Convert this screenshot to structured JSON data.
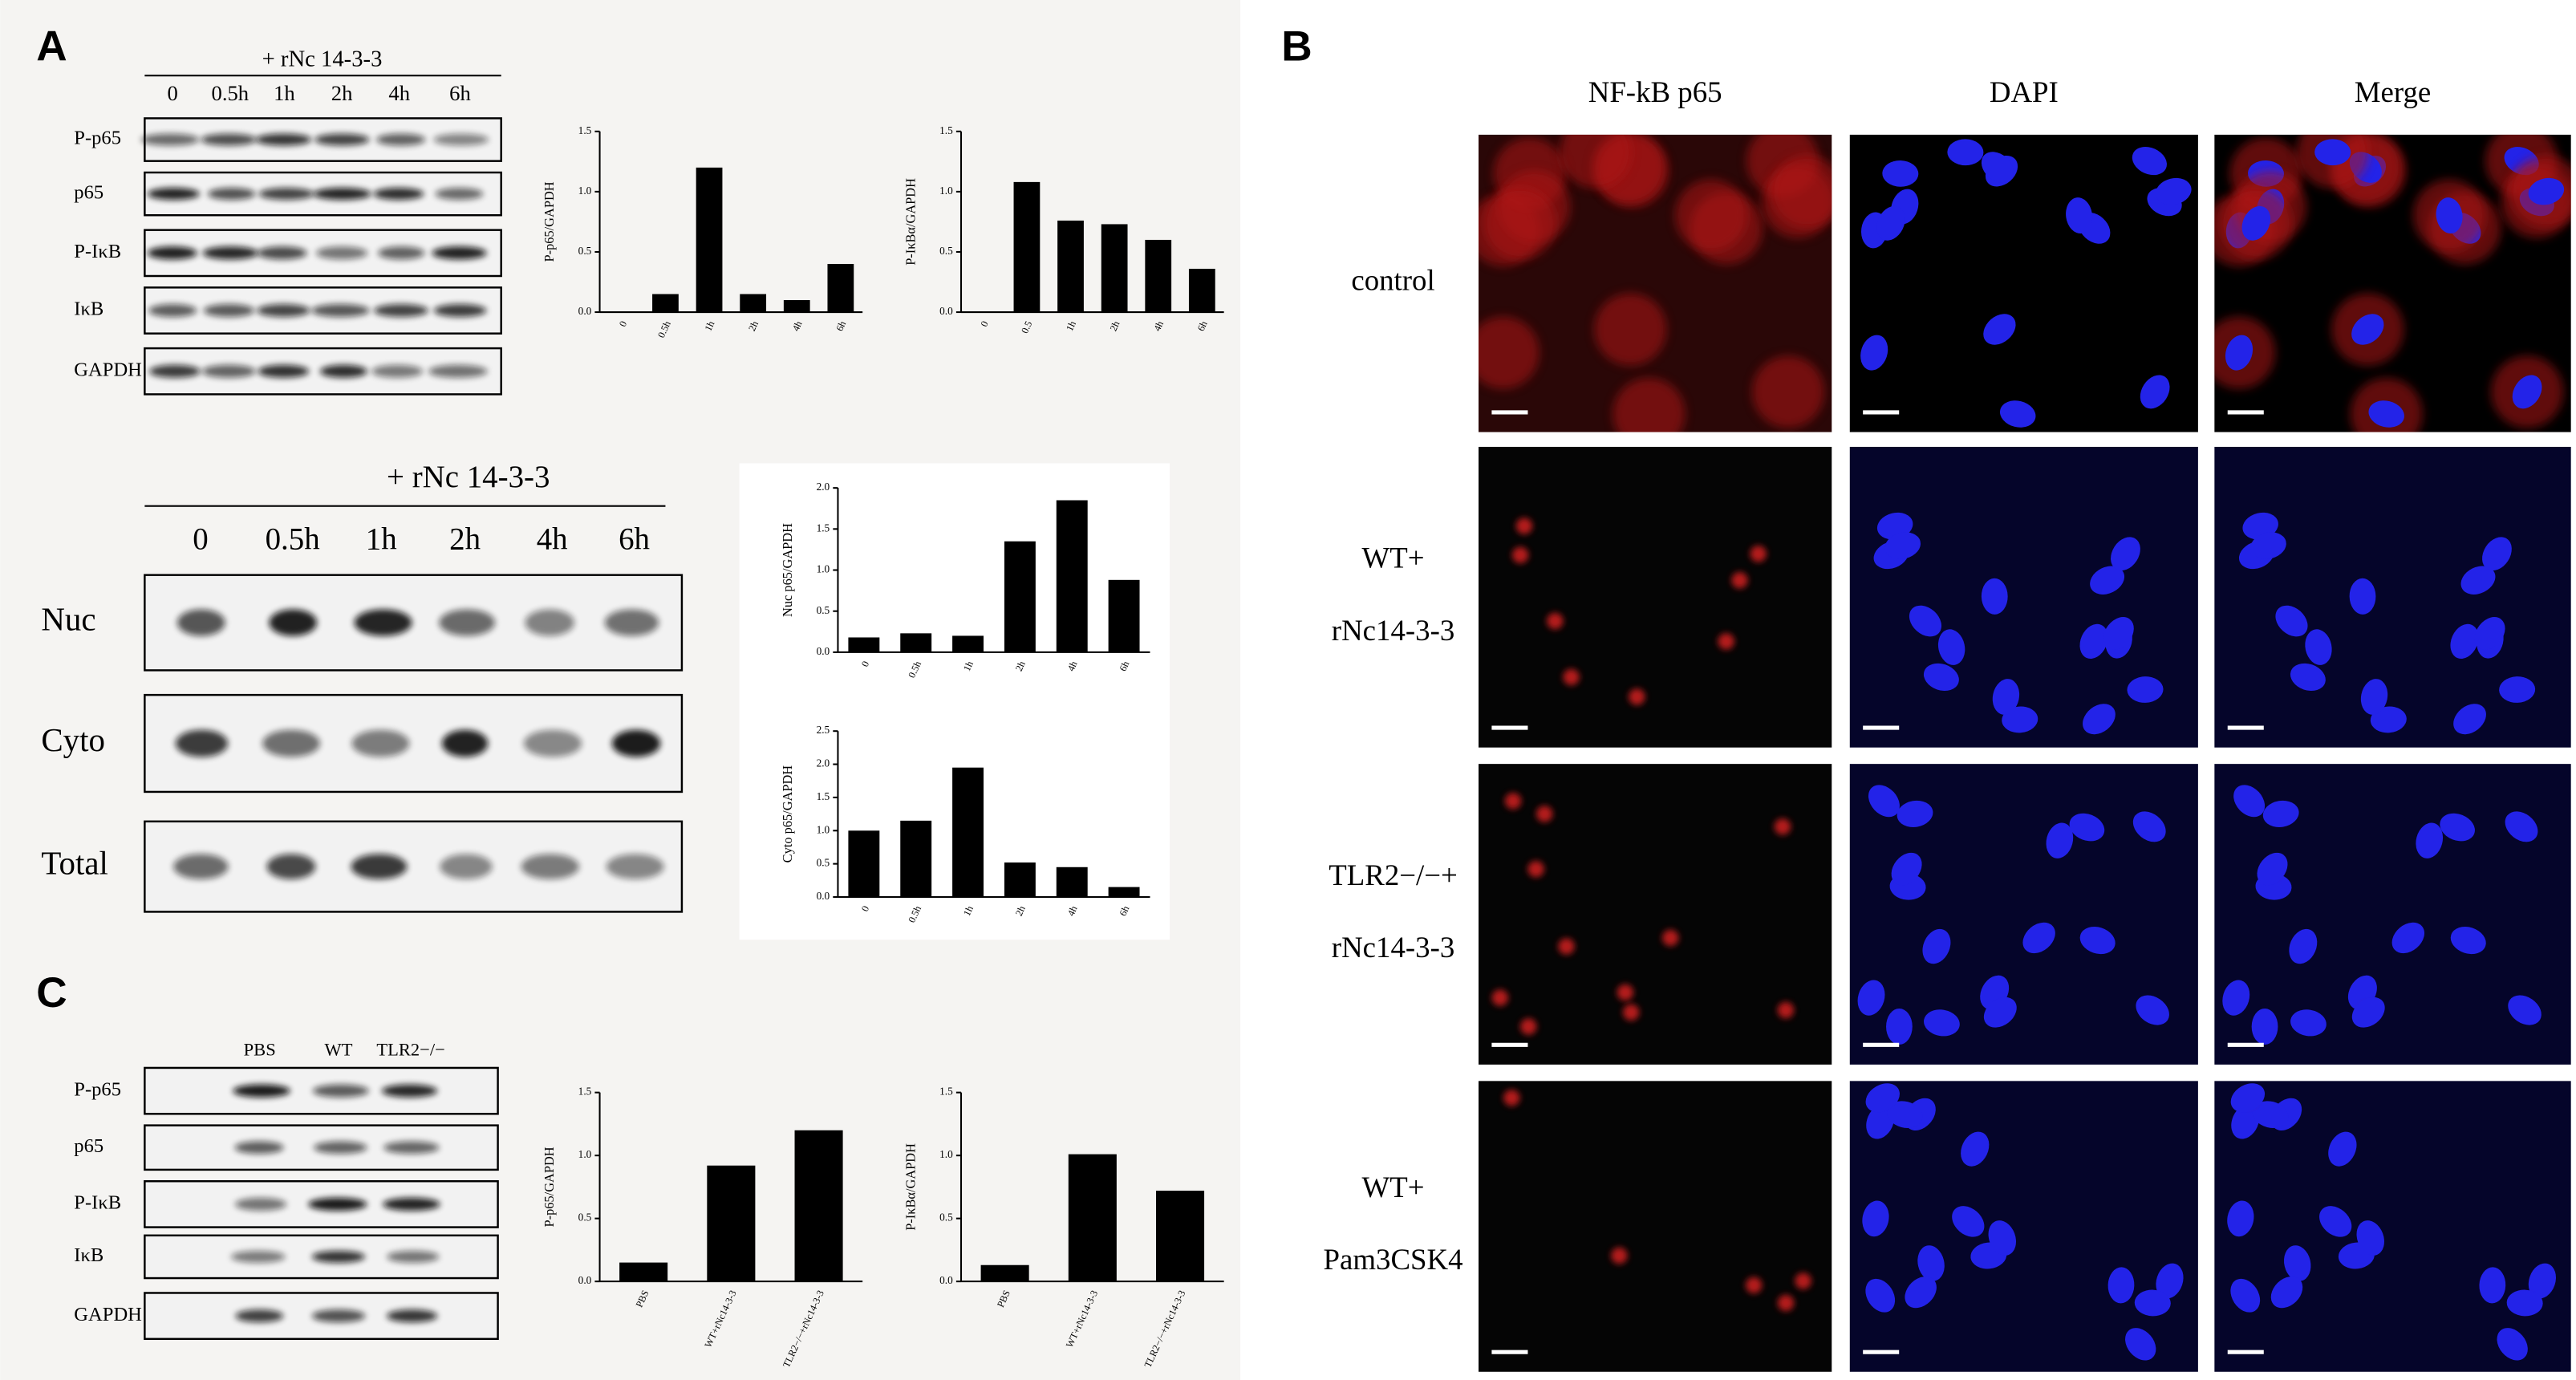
{
  "panel_labels": [
    "A",
    "B",
    "C"
  ],
  "panel_a": {
    "treatment_top": "+ rNc 14-3-3",
    "lanes_top": [
      "0",
      "0.5h",
      "1h",
      "2h",
      "4h",
      "6h"
    ],
    "blots_top": [
      "P-p65",
      "p65",
      "P-IκB",
      "IκB",
      "GAPDH"
    ],
    "treatment_mid": "+ rNc 14-3-3",
    "lanes_mid": [
      "0",
      "0.5h",
      "1h",
      "2h",
      "4h",
      "6h"
    ],
    "blots_mid": [
      "Nuc",
      "Cyto",
      "Total"
    ]
  },
  "panel_c": {
    "lanes": [
      "PBS",
      "WT",
      "TLR2−/−"
    ],
    "blots": [
      "P-p65",
      "p65",
      "P-IκB",
      "IκB",
      "GAPDH"
    ]
  },
  "panel_b": {
    "columns": [
      "NF-kB p65",
      "DAPI",
      "Merge"
    ],
    "rows": [
      [
        "control"
      ],
      [
        "WT+",
        "rNc14-3-3"
      ],
      [
        "TLR2−/−+",
        "rNc14-3-3"
      ],
      [
        "WT+",
        "Pam3CSK4"
      ]
    ]
  },
  "chart_data": [
    {
      "type": "bar",
      "ylabel": "P-p65/GAPDH",
      "categories": [
        "0",
        "0.5h",
        "1h",
        "2h",
        "4h",
        "6h"
      ],
      "values": [
        0,
        0.15,
        1.2,
        0.15,
        0.1,
        0.4
      ],
      "color": "#000000",
      "ylim": [
        0,
        1.5
      ],
      "yticks": [
        {
          "value": 0,
          "label": "0.0"
        },
        0.5,
        {
          "value": 1,
          "label": "1.0"
        },
        1.5
      ]
    },
    {
      "type": "bar",
      "ylabel": "P-IκBα/GAPDH",
      "categories": [
        "0",
        "0.5",
        "1h",
        "2h",
        "4h",
        "6h"
      ],
      "values": [
        0,
        1.08,
        0.76,
        0.73,
        0.6,
        0.36
      ],
      "color": "#000000",
      "ylim": [
        0,
        1.5
      ],
      "yticks": [
        {
          "value": 0,
          "label": "0.0"
        },
        0.5,
        {
          "value": 1,
          "label": "1.0"
        },
        1.5
      ]
    },
    {
      "type": "bar",
      "ylabel": "Nuc p65/GAPDH",
      "categories": [
        "0",
        "0.5h",
        "1h",
        "2h",
        "4h",
        "6h"
      ],
      "values": [
        0.18,
        0.23,
        0.2,
        1.35,
        1.85,
        0.88
      ],
      "color": "#000000",
      "ylim": [
        0,
        2
      ],
      "yticks": [
        {
          "value": 0,
          "label": "0.0"
        },
        0.5,
        {
          "value": 1,
          "label": "1.0"
        },
        1.5,
        {
          "value": 2,
          "label": "2.0"
        }
      ]
    },
    {
      "type": "bar",
      "ylabel": "Cyto p65/GAPDH",
      "categories": [
        "0",
        "0.5h",
        "1h",
        "2h",
        "4h",
        "6h"
      ],
      "values": [
        1.0,
        1.15,
        1.95,
        0.52,
        0.45,
        0.15
      ],
      "color": "#000000",
      "ylim": [
        0,
        2.5
      ],
      "yticks": [
        {
          "value": 0,
          "label": "0.0"
        },
        0.5,
        {
          "value": 1,
          "label": "1.0"
        },
        1.5,
        {
          "value": 2,
          "label": "2.0"
        },
        2.5
      ]
    },
    {
      "type": "bar",
      "ylabel": "P-p65/GAPDH",
      "categories": [
        "PBS",
        "WT+rNc14-3-3",
        "TLR2−/−+rNc14-3-3"
      ],
      "values": [
        0.15,
        0.92,
        1.2
      ],
      "color": "#000000",
      "ylim": [
        0,
        1.5
      ],
      "yticks": [
        {
          "value": 0,
          "label": "0.0"
        },
        0.5,
        {
          "value": 1,
          "label": "1.0"
        },
        1.5
      ]
    },
    {
      "type": "bar",
      "ylabel": "P-IκBα/GAPDH",
      "categories": [
        "PBS",
        "WT+rNc14-3-3",
        "TLR2−/−+rNc14-3-3"
      ],
      "values": [
        0.13,
        1.01,
        0.72
      ],
      "color": "#000000",
      "ylim": [
        0,
        1.5
      ],
      "yticks": [
        {
          "value": 0,
          "label": "0.0"
        },
        0.5,
        {
          "value": 1,
          "label": "1.0"
        },
        1.5
      ]
    }
  ]
}
